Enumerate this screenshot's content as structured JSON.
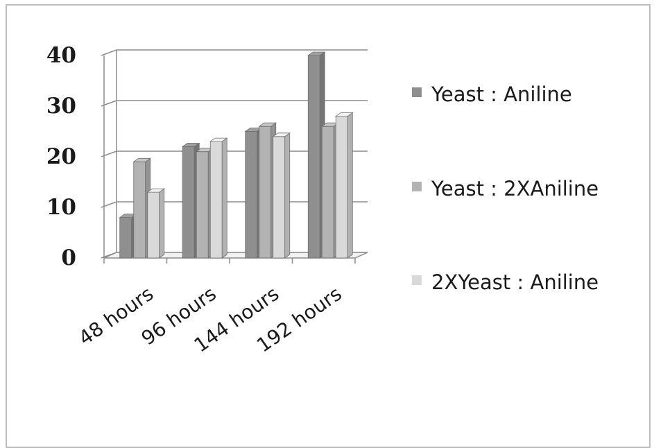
{
  "chart_data": {
    "type": "bar",
    "style": "3d-clustered",
    "categories": [
      "48 hours",
      "96 hours",
      "144 hours",
      "192 hours"
    ],
    "series": [
      {
        "name": "Yeast : Aniline",
        "values": [
          8,
          22,
          25,
          40
        ],
        "color": "#8f8f8f"
      },
      {
        "name": "Yeast : 2XAniline",
        "values": [
          19,
          21,
          26,
          26
        ],
        "color": "#b3b3b3"
      },
      {
        "name": "2XYeast : Aniline",
        "values": [
          13,
          23,
          24,
          28
        ],
        "color": "#d9d9d9"
      }
    ],
    "y_ticks": [
      "0",
      "10",
      "20",
      "30",
      "40"
    ],
    "ylim": [
      0,
      40
    ],
    "grid": true,
    "legend_position": "right"
  }
}
